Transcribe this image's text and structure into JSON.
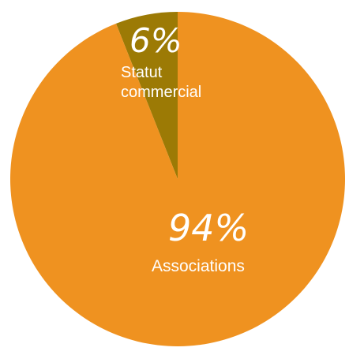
{
  "chart_data": {
    "type": "pie",
    "title": "",
    "slices": [
      {
        "label": "Statut commercial",
        "label_lines": [
          "Statut",
          "commercial"
        ],
        "value": 6,
        "display": "6%",
        "color": "#9c7a05"
      },
      {
        "label": "Associations",
        "label_lines": [
          "Associations"
        ],
        "value": 94,
        "display": "94%",
        "color": "#ef9220"
      }
    ],
    "legend": "none",
    "labels_on_slices": true
  }
}
